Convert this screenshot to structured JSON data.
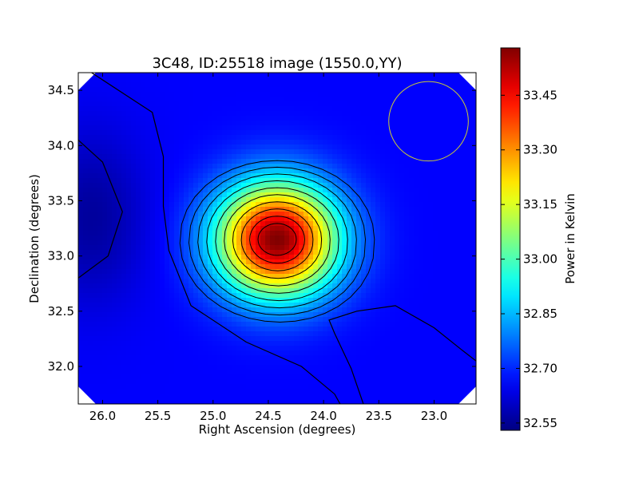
{
  "chart_data": {
    "type": "heatmap",
    "title": "3C48, ID:25518 image (1550.0,YY)",
    "xlabel": "Right Ascension (degrees)",
    "ylabel": "Declination (degrees)",
    "xlim": [
      26.22,
      22.62
    ],
    "ylim": [
      31.66,
      34.66
    ],
    "x_ticks": [
      26.0,
      25.5,
      25.0,
      24.5,
      24.0,
      23.5,
      23.0
    ],
    "x_tick_labels": [
      "26.0",
      "25.5",
      "25.0",
      "24.5",
      "24.0",
      "23.5",
      "23.0"
    ],
    "y_ticks": [
      32.0,
      32.5,
      33.0,
      33.5,
      34.0,
      34.5
    ],
    "y_tick_labels": [
      "32.0",
      "32.5",
      "33.0",
      "33.5",
      "34.0",
      "34.5"
    ],
    "colorbar": {
      "label": "Power in Kelvin",
      "range": [
        32.53,
        33.58
      ],
      "ticks": [
        32.55,
        32.7,
        32.85,
        33.0,
        33.15,
        33.3,
        33.45
      ],
      "tick_labels": [
        "32.55",
        "32.70",
        "32.85",
        "33.00",
        "33.15",
        "33.30",
        "33.45"
      ],
      "colormap": "jet"
    },
    "peak": {
      "ra": 24.42,
      "dec": 33.15,
      "value": 33.58
    },
    "background_level": 32.66,
    "minimum_region": {
      "ra": 26.1,
      "dec": 33.35,
      "value": 32.56
    },
    "beam_circle": {
      "ra": 23.05,
      "dec": 34.22,
      "radius_deg": 0.36,
      "color": "#cccc33"
    },
    "contour_color": "#000000"
  }
}
